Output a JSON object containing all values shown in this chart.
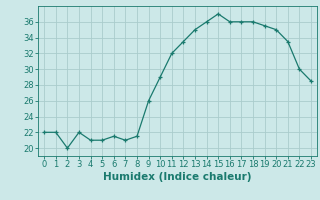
{
  "x": [
    0,
    1,
    2,
    3,
    4,
    5,
    6,
    7,
    8,
    9,
    10,
    11,
    12,
    13,
    14,
    15,
    16,
    17,
    18,
    19,
    20,
    21,
    22,
    23
  ],
  "y": [
    22,
    22,
    20,
    22,
    21,
    21,
    21.5,
    21,
    21.5,
    26,
    29,
    32,
    33.5,
    35,
    36,
    37,
    36,
    36,
    36,
    35.5,
    35,
    33.5,
    30,
    28.5
  ],
  "line_color": "#1a7a6e",
  "marker": "+",
  "marker_size": 3,
  "bg_color": "#cce8e8",
  "grid_color": "#aacccc",
  "xlabel": "Humidex (Indice chaleur)",
  "xlim": [
    -0.5,
    23.5
  ],
  "ylim": [
    19,
    38
  ],
  "yticks": [
    20,
    22,
    24,
    26,
    28,
    30,
    32,
    34,
    36
  ],
  "xticks": [
    0,
    1,
    2,
    3,
    4,
    5,
    6,
    7,
    8,
    9,
    10,
    11,
    12,
    13,
    14,
    15,
    16,
    17,
    18,
    19,
    20,
    21,
    22,
    23
  ],
  "tick_label_fontsize": 6,
  "xlabel_fontsize": 7.5
}
